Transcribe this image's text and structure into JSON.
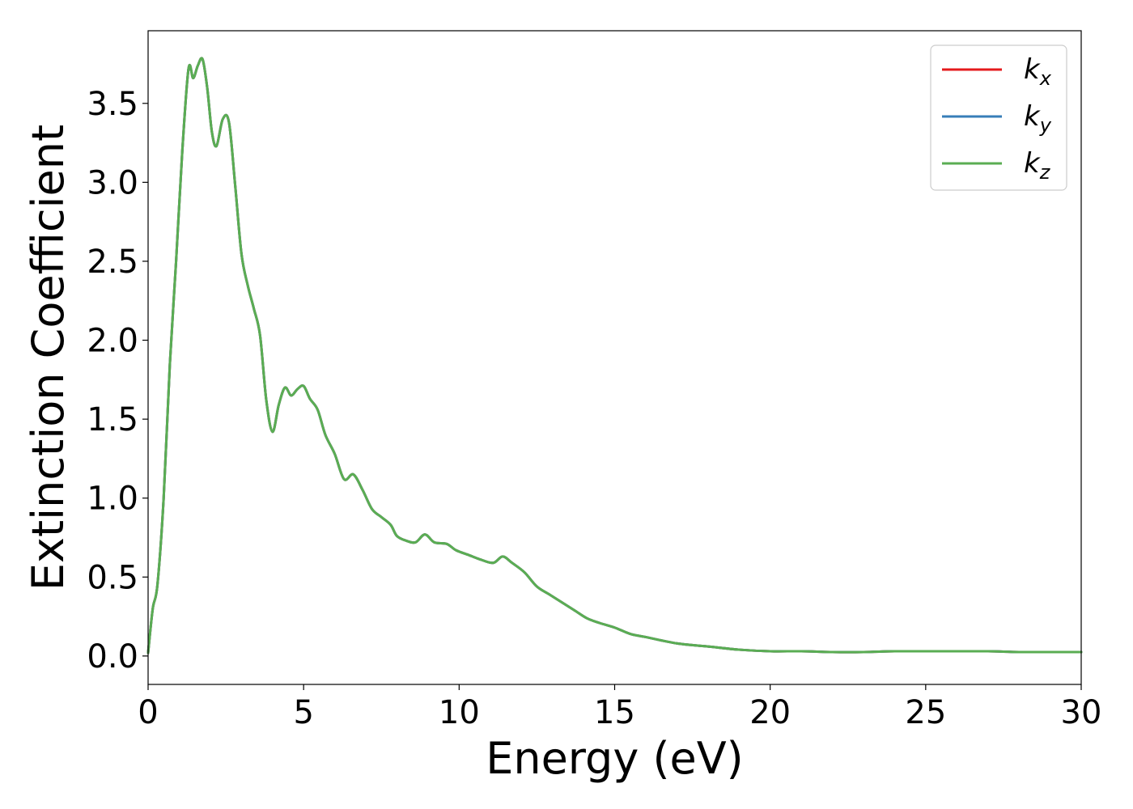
{
  "chart_data": {
    "type": "line",
    "xlabel": "Energy (eV)",
    "ylabel": "Extinction Coefficient",
    "xlim": [
      0,
      30
    ],
    "ylim": [
      -0.18,
      3.96
    ],
    "xticks": [
      0,
      5,
      10,
      15,
      20,
      25,
      30
    ],
    "xtick_labels": [
      "0",
      "5",
      "10",
      "15",
      "20",
      "25",
      "30"
    ],
    "yticks": [
      0.0,
      0.5,
      1.0,
      1.5,
      2.0,
      2.5,
      3.0,
      3.5
    ],
    "ytick_labels": [
      "0.0",
      "0.5",
      "1.0",
      "1.5",
      "2.0",
      "2.5",
      "3.0",
      "3.5"
    ],
    "grid": false,
    "legend_position": "top-right",
    "x": [
      0.0,
      0.15,
      0.3,
      0.5,
      0.7,
      0.9,
      1.1,
      1.3,
      1.45,
      1.6,
      1.75,
      1.9,
      2.05,
      2.2,
      2.4,
      2.6,
      2.8,
      3.0,
      3.2,
      3.4,
      3.6,
      3.8,
      4.0,
      4.2,
      4.4,
      4.6,
      4.8,
      5.0,
      5.2,
      5.45,
      5.7,
      6.0,
      6.3,
      6.6,
      6.9,
      7.2,
      7.5,
      7.8,
      8.0,
      8.3,
      8.6,
      8.9,
      9.2,
      9.6,
      9.9,
      10.3,
      10.7,
      11.1,
      11.4,
      11.7,
      12.1,
      12.5,
      12.9,
      13.3,
      13.7,
      14.1,
      14.5,
      15.0,
      15.5,
      16.0,
      17.0,
      18.0,
      19.0,
      20.0,
      21.0,
      22.0,
      23.0,
      24.0,
      25.0,
      26.0,
      27.0,
      28.0,
      29.0,
      30.0
    ],
    "series": [
      {
        "name": "k_x",
        "label_base": "k",
        "label_sub": "x",
        "color": "#e41a1c",
        "values": [
          0.02,
          0.3,
          0.45,
          1.0,
          1.85,
          2.5,
          3.2,
          3.72,
          3.66,
          3.74,
          3.78,
          3.6,
          3.32,
          3.23,
          3.4,
          3.38,
          2.98,
          2.55,
          2.35,
          2.2,
          2.03,
          1.62,
          1.42,
          1.59,
          1.7,
          1.65,
          1.69,
          1.71,
          1.63,
          1.56,
          1.4,
          1.28,
          1.12,
          1.15,
          1.05,
          0.93,
          0.88,
          0.83,
          0.76,
          0.73,
          0.72,
          0.77,
          0.72,
          0.71,
          0.67,
          0.64,
          0.61,
          0.59,
          0.63,
          0.59,
          0.53,
          0.44,
          0.39,
          0.34,
          0.29,
          0.24,
          0.21,
          0.18,
          0.14,
          0.12,
          0.08,
          0.06,
          0.04,
          0.03,
          0.03,
          0.025,
          0.025,
          0.03,
          0.03,
          0.03,
          0.03,
          0.025,
          0.025,
          0.025
        ]
      },
      {
        "name": "k_y",
        "label_base": "k",
        "label_sub": "y",
        "color": "#377eb8",
        "values": [
          0.02,
          0.3,
          0.45,
          1.0,
          1.85,
          2.5,
          3.2,
          3.72,
          3.66,
          3.74,
          3.78,
          3.6,
          3.32,
          3.23,
          3.4,
          3.38,
          2.98,
          2.55,
          2.35,
          2.2,
          2.03,
          1.62,
          1.42,
          1.59,
          1.7,
          1.65,
          1.69,
          1.71,
          1.63,
          1.56,
          1.4,
          1.28,
          1.12,
          1.15,
          1.05,
          0.93,
          0.88,
          0.83,
          0.76,
          0.73,
          0.72,
          0.77,
          0.72,
          0.71,
          0.67,
          0.64,
          0.61,
          0.59,
          0.63,
          0.59,
          0.53,
          0.44,
          0.39,
          0.34,
          0.29,
          0.24,
          0.21,
          0.18,
          0.14,
          0.12,
          0.08,
          0.06,
          0.04,
          0.03,
          0.03,
          0.025,
          0.025,
          0.03,
          0.03,
          0.03,
          0.03,
          0.025,
          0.025,
          0.025
        ]
      },
      {
        "name": "k_z",
        "label_base": "k",
        "label_sub": "z",
        "color": "#5aad53",
        "values": [
          0.02,
          0.3,
          0.45,
          1.0,
          1.85,
          2.5,
          3.2,
          3.72,
          3.66,
          3.74,
          3.78,
          3.6,
          3.32,
          3.23,
          3.4,
          3.38,
          2.98,
          2.55,
          2.35,
          2.2,
          2.03,
          1.62,
          1.42,
          1.59,
          1.7,
          1.65,
          1.69,
          1.71,
          1.63,
          1.56,
          1.4,
          1.28,
          1.12,
          1.15,
          1.05,
          0.93,
          0.88,
          0.83,
          0.76,
          0.73,
          0.72,
          0.77,
          0.72,
          0.71,
          0.67,
          0.64,
          0.61,
          0.59,
          0.63,
          0.59,
          0.53,
          0.44,
          0.39,
          0.34,
          0.29,
          0.24,
          0.21,
          0.18,
          0.14,
          0.12,
          0.08,
          0.06,
          0.04,
          0.03,
          0.03,
          0.025,
          0.025,
          0.03,
          0.03,
          0.03,
          0.03,
          0.025,
          0.025,
          0.025
        ]
      }
    ]
  }
}
